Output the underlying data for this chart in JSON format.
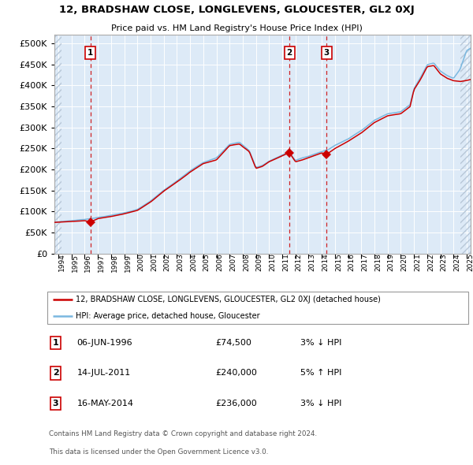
{
  "title": "12, BRADSHAW CLOSE, LONGLEVENS, GLOUCESTER, GL2 0XJ",
  "subtitle": "Price paid vs. HM Land Registry's House Price Index (HPI)",
  "legend_line1": "12, BRADSHAW CLOSE, LONGLEVENS, GLOUCESTER, GL2 0XJ (detached house)",
  "legend_line2": "HPI: Average price, detached house, Gloucester",
  "footer1": "Contains HM Land Registry data © Crown copyright and database right 2024.",
  "footer2": "This data is licensed under the Open Government Licence v3.0.",
  "sale_labels": [
    {
      "n": 1,
      "date": "06-JUN-1996",
      "price": "£74,500",
      "pct": "3%",
      "dir": "↓",
      "year": 1996.44,
      "val": 74500
    },
    {
      "n": 2,
      "date": "14-JUL-2011",
      "price": "£240,000",
      "pct": "5%",
      "dir": "↑",
      "year": 2011.54,
      "val": 240000
    },
    {
      "n": 3,
      "date": "16-MAY-2014",
      "price": "£236,000",
      "pct": "3%",
      "dir": "↓",
      "year": 2014.37,
      "val": 236000
    }
  ],
  "hpi_color": "#7ab8e0",
  "price_color": "#cc0000",
  "bg_color": "#ddeaf7",
  "grid_color": "#ffffff",
  "hatch_color": "#b8c8d8",
  "ylim": [
    0,
    520000
  ],
  "yticks": [
    0,
    50000,
    100000,
    150000,
    200000,
    250000,
    300000,
    350000,
    400000,
    450000,
    500000
  ],
  "xlim_start": 1993.7,
  "xlim_end": 2025.3
}
